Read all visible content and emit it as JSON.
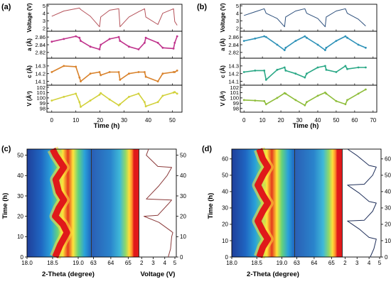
{
  "panels": {
    "a": {
      "label": "(a)",
      "xlabel": "Time (h)",
      "xlim": [
        -2,
        54
      ],
      "xticks": [
        "0",
        "10",
        "20",
        "30",
        "40",
        "50"
      ],
      "xtick_values": [
        0,
        10,
        20,
        30,
        40,
        50
      ],
      "rows": [
        {
          "key": "voltage",
          "ylabel": "Voltage (V)",
          "ylim": [
            1.6,
            5.2
          ],
          "ytick_values": [
            2,
            3,
            4,
            5
          ],
          "yticks": [
            "2",
            "3",
            "4",
            "5"
          ],
          "color": "#b5525a"
        },
        {
          "key": "a",
          "ylabel": "a (Å)",
          "ylim": [
            2.805,
            2.875
          ],
          "ytick_values": [
            2.82,
            2.84,
            2.86
          ],
          "yticks": [
            "2.82",
            "2.84",
            "2.86"
          ],
          "color": "#c0338c"
        },
        {
          "key": "c",
          "ylabel": "c (Å)",
          "ylim": [
            14.05,
            14.4
          ],
          "ytick_values": [
            14.1,
            14.2,
            14.3
          ],
          "yticks": [
            "14.1",
            "14.2",
            "14.3"
          ],
          "color": "#d9822b"
        },
        {
          "key": "V",
          "ylabel": "V (Å³)",
          "ylim": [
            97.3,
            102.4
          ],
          "ytick_values": [
            98,
            99,
            100,
            101,
            102
          ],
          "yticks": [
            "98",
            "99",
            "100",
            "101",
            "102"
          ],
          "color": "#d2d13a"
        }
      ]
    },
    "b": {
      "label": "(b)",
      "xlabel": "Time (h)",
      "xlim": [
        -2,
        72
      ],
      "xticks": [
        "0",
        "10",
        "20",
        "30",
        "40",
        "50",
        "60",
        "70"
      ],
      "xtick_values": [
        0,
        10,
        20,
        30,
        40,
        50,
        60,
        70
      ],
      "rows": [
        {
          "key": "voltage",
          "ylabel": "Voltage (V)",
          "ylim": [
            1.6,
            5.2
          ],
          "ytick_values": [
            2,
            3,
            4,
            5
          ],
          "yticks": [
            "2",
            "3",
            "4",
            "5"
          ],
          "color": "#2c4f7c"
        },
        {
          "key": "a",
          "ylabel": "a (Å)",
          "ylim": [
            2.805,
            2.875
          ],
          "ytick_values": [
            2.82,
            2.84,
            2.86
          ],
          "yticks": [
            "2.82",
            "2.84",
            "2.86"
          ],
          "color": "#2e92b8"
        },
        {
          "key": "c",
          "ylabel": "c (Å)",
          "ylim": [
            14.05,
            14.4
          ],
          "ytick_values": [
            14.1,
            14.2,
            14.3
          ],
          "yticks": [
            "14.1",
            "14.2",
            "14.3"
          ],
          "color": "#2aa886"
        },
        {
          "key": "V",
          "ylabel": "V (Å³)",
          "ylim": [
            97.3,
            102.4
          ],
          "ytick_values": [
            98,
            99,
            100,
            101,
            102
          ],
          "yticks": [
            "98",
            "99",
            "100",
            "101",
            "102"
          ],
          "color": "#8ebd3a"
        }
      ]
    },
    "c": {
      "label": "(c)",
      "ylabel": "Time (h)",
      "xlabel": "2-Theta (degree)",
      "xlabel_voltage": "Voltage (V)",
      "ylim": [
        0,
        53
      ],
      "yticks": [
        "0",
        "10",
        "20",
        "30",
        "40",
        "50"
      ],
      "ytick_values": [
        0,
        10,
        20,
        30,
        40,
        50
      ],
      "heat1_ticks": [
        "18.0",
        "18.5",
        "19.0"
      ],
      "heat2_ticks": [
        "63",
        "64",
        "65"
      ],
      "volt_ticks": [
        "2",
        "3",
        "4",
        "5"
      ],
      "voltage_color": "#8b3a3a"
    },
    "d": {
      "label": "(d)",
      "ylabel": "Time (h)",
      "xlabel": "2-Theta (degree)",
      "ylim": [
        0,
        66
      ],
      "yticks": [
        "0",
        "10",
        "20",
        "30",
        "40",
        "50",
        "60"
      ],
      "ytick_values": [
        0,
        10,
        20,
        30,
        40,
        50,
        60
      ],
      "heat1_ticks": [
        "18.0",
        "18.5",
        "19.0"
      ],
      "heat2_ticks": [
        "63",
        "64",
        "65"
      ],
      "volt_ticks": [
        "2",
        "3",
        "4",
        "5"
      ],
      "voltage_color": "#1f2f5a"
    }
  },
  "chart_data": [
    {
      "type": "line",
      "panel": "a",
      "xlabel": "Time (h)",
      "x": [
        0,
        5,
        10,
        11.5,
        12,
        16,
        19.8,
        20.3,
        24,
        27.8,
        28.3,
        32,
        36,
        38.5,
        39,
        44,
        46,
        50.5,
        51,
        52
      ],
      "series": [
        {
          "name": "Voltage (V)",
          "values": [
            3.6,
            4.3,
            4.6,
            4.7,
            4.5,
            3.6,
            2.2,
            3.5,
            4.4,
            4.6,
            2.2,
            3.5,
            4.2,
            4.6,
            3.5,
            2.5,
            4.0,
            4.6,
            2.9,
            2.4
          ]
        },
        {
          "name": "a (Å)",
          "values": [
            2.848,
            2.855,
            2.862,
            2.858,
            2.85,
            2.835,
            2.828,
            2.84,
            2.855,
            2.86,
            2.85,
            2.835,
            2.828,
            2.845,
            2.858,
            2.845,
            2.832,
            2.83,
            2.845,
            2.862
          ]
        },
        {
          "name": "c (Å)",
          "values": [
            14.22,
            14.3,
            14.29,
            14.15,
            14.1,
            14.2,
            14.22,
            14.18,
            14.22,
            14.22,
            14.12,
            14.2,
            14.22,
            14.22,
            14.16,
            14.1,
            14.2,
            14.22,
            14.22,
            14.24
          ]
        },
        {
          "name": "V (Å³)",
          "values": [
            99.5,
            100.2,
            100.8,
            99.2,
            98.3,
            99.5,
            100.6,
            100.9,
            99.7,
            98.6,
            98.8,
            100.2,
            100.8,
            99.2,
            98.4,
            99.2,
            100.4,
            101.0,
            101.1,
            100.8
          ]
        }
      ]
    },
    {
      "type": "line",
      "panel": "b",
      "xlabel": "Time (h)",
      "x": [
        0,
        6,
        11,
        12,
        18,
        22,
        22.6,
        28,
        33,
        34,
        40,
        44,
        44.6,
        50,
        55,
        56,
        62,
        66
      ],
      "series": [
        {
          "name": "Voltage (V)",
          "values": [
            3.7,
            4.2,
            4.6,
            4.0,
            3.3,
            2.2,
            3.5,
            4.3,
            4.6,
            4.0,
            3.3,
            2.2,
            3.5,
            4.3,
            4.6,
            4.0,
            3.2,
            2.3
          ]
        },
        {
          "name": "a (Å)",
          "values": [
            2.85,
            2.856,
            2.862,
            2.86,
            2.84,
            2.826,
            2.832,
            2.85,
            2.862,
            2.858,
            2.84,
            2.826,
            2.832,
            2.85,
            2.862,
            2.858,
            2.84,
            2.832
          ]
        },
        {
          "name": "c (Å)",
          "values": [
            14.22,
            14.24,
            14.24,
            14.12,
            14.25,
            14.28,
            14.24,
            14.2,
            14.15,
            14.2,
            14.28,
            14.3,
            14.25,
            14.22,
            14.3,
            14.26,
            14.28,
            14.28
          ]
        },
        {
          "name": "V (Å³)",
          "values": [
            99.6,
            99.5,
            99.4,
            98.8,
            100.0,
            100.9,
            100.8,
            99.6,
            98.6,
            99.2,
            100.4,
            101.0,
            100.8,
            99.4,
            98.8,
            99.6,
            100.8,
            101.6
          ]
        }
      ]
    },
    {
      "type": "heatmap",
      "panel": "c",
      "ylabel": "Time (h)",
      "xlabel": "2-Theta (degree)",
      "peak1_position_vs_time": {
        "time": [
          0,
          6,
          12,
          16,
          20,
          24,
          28,
          32,
          38,
          44,
          50,
          53
        ],
        "two_theta": [
          18.55,
          18.65,
          18.78,
          18.7,
          18.55,
          18.62,
          18.72,
          18.62,
          18.56,
          18.72,
          18.56,
          18.5
        ]
      },
      "voltage_vs_time": {
        "time": [
          0,
          4,
          10,
          12,
          12.5,
          17,
          20,
          20.5,
          26,
          28,
          28.5,
          35,
          40,
          44,
          44.5,
          50,
          53
        ],
        "voltage": [
          4.3,
          4.5,
          4.6,
          4.7,
          4.6,
          3.5,
          2.2,
          3.4,
          4.3,
          4.6,
          2.4,
          3.5,
          4.2,
          4.6,
          3.4,
          2.4,
          2.6
        ]
      }
    },
    {
      "type": "heatmap",
      "panel": "d",
      "ylabel": "Time (h)",
      "xlabel": "2-Theta (degree)",
      "peak1_position_vs_time": {
        "time": [
          0,
          6,
          11,
          16,
          22,
          28,
          33,
          38,
          44,
          50,
          55,
          60,
          66
        ],
        "two_theta": [
          18.55,
          18.62,
          18.72,
          18.62,
          18.52,
          18.62,
          18.72,
          18.62,
          18.52,
          18.62,
          18.72,
          18.62,
          18.55
        ]
      },
      "voltage_vs_time": {
        "time": [
          0,
          5,
          11,
          12,
          17,
          22,
          22.5,
          28,
          33,
          34,
          39,
          44,
          44.5,
          50,
          55,
          56,
          62,
          66
        ],
        "voltage": [
          4.1,
          4.4,
          4.6,
          4.0,
          3.2,
          2.2,
          3.6,
          4.3,
          4.6,
          4.0,
          3.2,
          2.2,
          3.6,
          4.3,
          4.6,
          4.0,
          3.0,
          2.2
        ]
      }
    }
  ]
}
